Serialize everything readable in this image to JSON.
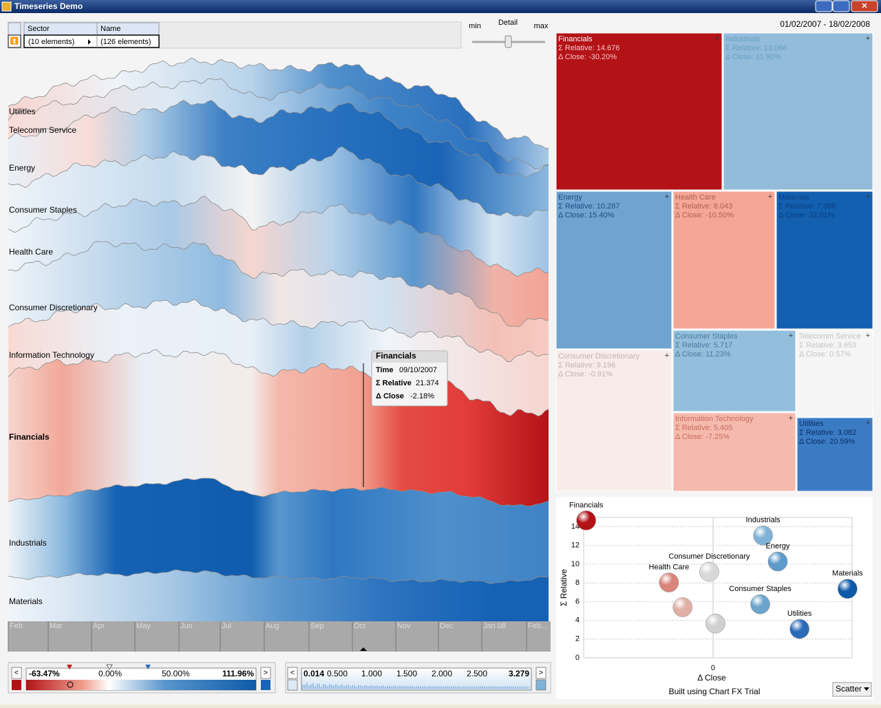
{
  "window": {
    "title": "Timeseries Demo"
  },
  "toolbar": {
    "columns": [
      "Sector",
      "Name"
    ],
    "cells": [
      "(10 elements)",
      "(126 elements)"
    ]
  },
  "detail": {
    "min": "min",
    "label": "Detail",
    "max": "max"
  },
  "date_range": "01/02/2007 - 18/02/2008",
  "stream": {
    "labels": [
      "Utilities",
      "Telecomm Service",
      "Energy",
      "Consumer Staples",
      "Health Care",
      "Consumer Discretionary",
      "Information Technology",
      "Financials",
      "Industrials",
      "Materials"
    ],
    "months": [
      "Feb",
      "Mar",
      "Apr",
      "May",
      "Jun",
      "Jul",
      "Aug",
      "Sep",
      "Oct",
      "Nov",
      "Dec",
      "Jan 08",
      "Feb..."
    ],
    "tooltip": {
      "title": "Financials",
      "rows": [
        [
          "Time",
          "09/10/2007"
        ],
        [
          "Σ Relative",
          "21.374"
        ],
        [
          "Δ Close",
          "-2.18%"
        ]
      ]
    }
  },
  "color_slider": {
    "labels": [
      "-63.47%",
      "0.00%",
      "50.00%",
      "111.96%"
    ]
  },
  "size_slider": {
    "labels": [
      "0.014",
      "0.500",
      "1.000",
      "1.500",
      "2.000",
      "2.500",
      "3.279"
    ]
  },
  "treemap": {
    "tiles": [
      {
        "name": "Financials",
        "relative": "Σ Relative: 14.676",
        "close": "Δ Close: -30.20%"
      },
      {
        "name": "Industrials",
        "relative": "Σ Relative: 13.066",
        "close": "Δ Close: 11.90%"
      },
      {
        "name": "Energy",
        "relative": "Σ Relative: 10.287",
        "close": "Δ Close: 15.40%"
      },
      {
        "name": "Health Care",
        "relative": "Σ Relative: 8.043",
        "close": "Δ Close: -10.50%"
      },
      {
        "name": "Materials",
        "relative": "Σ Relative: 7.368",
        "close": "Δ Close: 32.01%"
      },
      {
        "name": "Consumer Discretionary",
        "relative": "Σ Relative: 9.196",
        "close": "Δ Close: -0.91%"
      },
      {
        "name": "Consumer Staples",
        "relative": "Σ Relative: 5.717",
        "close": "Δ Close: 11.23%"
      },
      {
        "name": "Telecomm Service",
        "relative": "Σ Relative: 3.653",
        "close": "Δ Close: 0.57%"
      },
      {
        "name": "Information Technology",
        "relative": "Σ Relative: 5.405",
        "close": "Δ Close: -7.25%"
      },
      {
        "name": "Utilities",
        "relative": "Σ Relative: 3.082",
        "close": "Δ Close: 20.59%"
      }
    ]
  },
  "chart_data": {
    "type": "scatter",
    "xlabel": "Δ Close",
    "ylabel": "Σ Relative",
    "footer": "Built using Chart FX Trial",
    "point_labels": [
      "Financials",
      "Industrials",
      "Energy",
      "Consumer Discretionary",
      "Health Care",
      "Materials",
      "Consumer Staples",
      "Utilities",
      null,
      null
    ],
    "x": [
      -30.2,
      11.9,
      15.4,
      -0.91,
      -10.5,
      32.01,
      11.23,
      20.59,
      0.57,
      -7.25
    ],
    "values": [
      14.676,
      13.066,
      10.287,
      9.196,
      8.043,
      7.368,
      5.717,
      3.082,
      3.653,
      5.405
    ],
    "colors": [
      "#b31217",
      "#7fb2d6",
      "#5f9acb",
      "#d8d8d8",
      "#d9857a",
      "#0d5aa8",
      "#6ca4cc",
      "#2b6cb8",
      "#d0d0d0",
      "#e0b0a6"
    ],
    "xlim": [
      -30.8,
      33.1
    ],
    "ylim": [
      0,
      15
    ],
    "xticks": [
      0
    ],
    "yticks": [
      0,
      2,
      4,
      6,
      8,
      10,
      12,
      14
    ],
    "grid": true
  },
  "view_select": "Scatter"
}
